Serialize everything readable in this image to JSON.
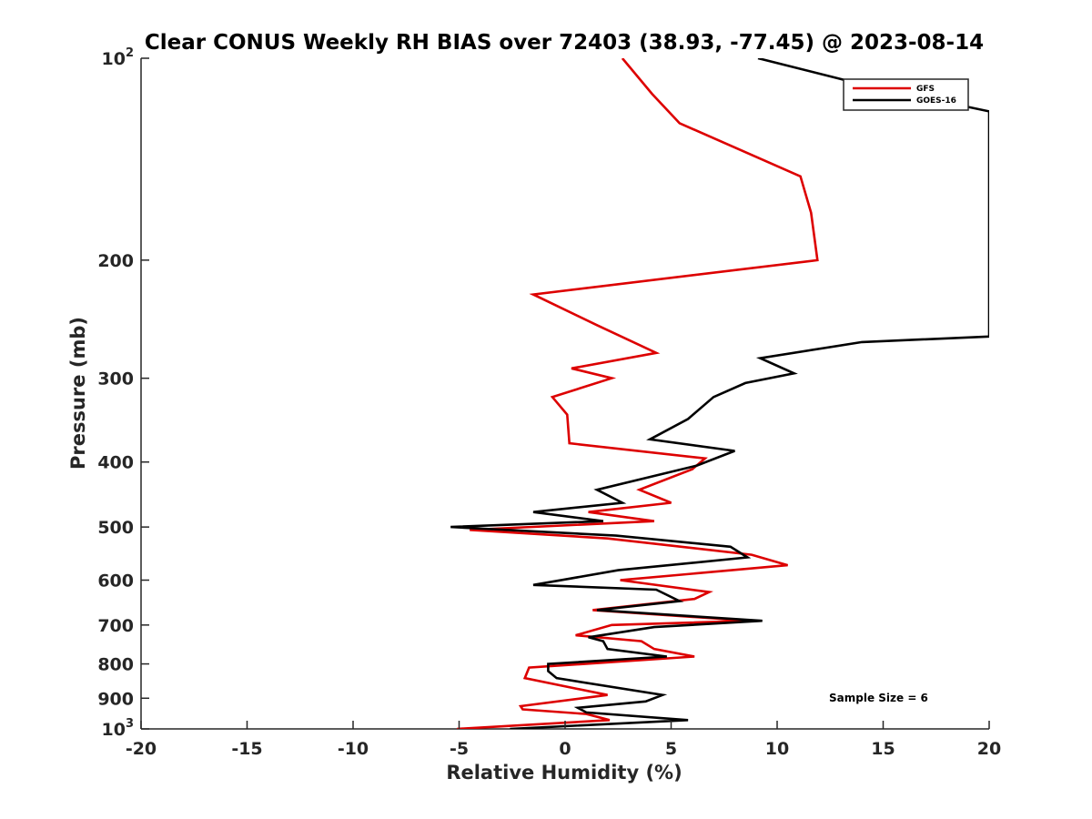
{
  "chart_data": {
    "type": "line",
    "title": "Clear CONUS Weekly RH BIAS over 72403 (38.93, -77.45) @ 2023-08-14",
    "xlabel": "Relative Humidity (%)",
    "ylabel": "Pressure (mb)",
    "xlim": [
      -20,
      20
    ],
    "ylim": [
      1000,
      100
    ],
    "y_scale": "log",
    "y_reversed": true,
    "x_ticks": [
      -20,
      -15,
      -10,
      -5,
      0,
      5,
      10,
      15,
      20
    ],
    "x_tick_labels": [
      "-20",
      "-15",
      "-10",
      "-5",
      "0",
      "5",
      "10",
      "15",
      "20"
    ],
    "y_ticks": [
      100,
      200,
      300,
      400,
      500,
      600,
      700,
      800,
      900,
      1000
    ],
    "y_tick_labels": [
      {
        "base": "10",
        "sup": "2"
      },
      {
        "base": "200",
        "sup": ""
      },
      {
        "base": "300",
        "sup": ""
      },
      {
        "base": "400",
        "sup": ""
      },
      {
        "base": "500",
        "sup": ""
      },
      {
        "base": "600",
        "sup": ""
      },
      {
        "base": "700",
        "sup": ""
      },
      {
        "base": "800",
        "sup": ""
      },
      {
        "base": "900",
        "sup": ""
      },
      {
        "base": "10",
        "sup": "3"
      }
    ],
    "grid": false,
    "legend_position": "top-right",
    "annotation": "Sample Size = 6",
    "series": [
      {
        "name": "GFS",
        "color": "#dd0000",
        "points": [
          [
            2.7,
            100
          ],
          [
            4.1,
            113
          ],
          [
            5.4,
            125
          ],
          [
            11.1,
            150
          ],
          [
            11.6,
            170
          ],
          [
            11.9,
            200
          ],
          [
            -1.5,
            225
          ],
          [
            1.5,
            250
          ],
          [
            4.3,
            275
          ],
          [
            0.3,
            290
          ],
          [
            2.2,
            300
          ],
          [
            -0.6,
            320
          ],
          [
            0.1,
            340
          ],
          [
            0.2,
            375
          ],
          [
            6.6,
            395
          ],
          [
            6.0,
            410
          ],
          [
            3.5,
            440
          ],
          [
            5.0,
            460
          ],
          [
            1.1,
            475
          ],
          [
            4.2,
            490
          ],
          [
            -4.5,
            505
          ],
          [
            2.0,
            520
          ],
          [
            8.8,
            550
          ],
          [
            10.5,
            570
          ],
          [
            2.6,
            600
          ],
          [
            6.8,
            625
          ],
          [
            6.1,
            640
          ],
          [
            1.3,
            665
          ],
          [
            8.7,
            690
          ],
          [
            2.2,
            700
          ],
          [
            0.5,
            725
          ],
          [
            3.6,
            740
          ],
          [
            4.2,
            760
          ],
          [
            6.1,
            780
          ],
          [
            -1.7,
            810
          ],
          [
            -1.9,
            840
          ],
          [
            2.0,
            890
          ],
          [
            -2.1,
            925
          ],
          [
            -2.0,
            935
          ],
          [
            1.0,
            950
          ],
          [
            2.1,
            970
          ],
          [
            -5.1,
            1000
          ]
        ]
      },
      {
        "name": "GOES-16",
        "color": "#000000",
        "points": [
          [
            9.1,
            100
          ],
          [
            14.3,
            110
          ],
          [
            20.0,
            120
          ],
          [
            20.0,
            260
          ],
          [
            14.0,
            265
          ],
          [
            9.2,
            280
          ],
          [
            10.8,
            295
          ],
          [
            8.5,
            305
          ],
          [
            7.0,
            320
          ],
          [
            5.8,
            345
          ],
          [
            4.0,
            370
          ],
          [
            8.0,
            385
          ],
          [
            6.2,
            405
          ],
          [
            1.5,
            440
          ],
          [
            2.7,
            460
          ],
          [
            -1.5,
            475
          ],
          [
            1.8,
            490
          ],
          [
            -5.4,
            500
          ],
          [
            2.4,
            515
          ],
          [
            7.8,
            535
          ],
          [
            8.6,
            555
          ],
          [
            2.5,
            580
          ],
          [
            -1.5,
            610
          ],
          [
            4.3,
            620
          ],
          [
            5.4,
            645
          ],
          [
            1.5,
            665
          ],
          [
            9.3,
            690
          ],
          [
            4.2,
            705
          ],
          [
            1.1,
            730
          ],
          [
            1.8,
            740
          ],
          [
            2.0,
            760
          ],
          [
            4.8,
            780
          ],
          [
            -0.8,
            800
          ],
          [
            -0.8,
            820
          ],
          [
            -0.4,
            840
          ],
          [
            4.6,
            890
          ],
          [
            3.8,
            910
          ],
          [
            0.6,
            930
          ],
          [
            1.0,
            945
          ],
          [
            5.8,
            970
          ],
          [
            -2.6,
            1000
          ]
        ]
      }
    ]
  }
}
